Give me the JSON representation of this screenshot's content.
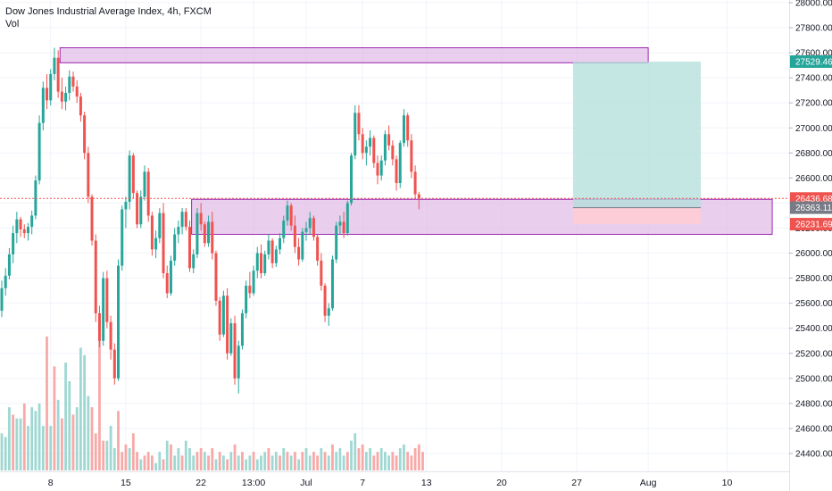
{
  "header": {
    "title": "Dow Jones Industrial Average Index, 4h, FXCM",
    "volume_label": "Vol"
  },
  "chart_data": {
    "type": "candlestick",
    "title": "Dow Jones Industrial Average Index, 4h, FXCM",
    "y_axis": {
      "range": [
        24200,
        28000
      ],
      "ticks": [
        24400,
        24600,
        24800,
        25000,
        25200,
        25400,
        25600,
        25800,
        26000,
        26200,
        26400,
        26600,
        26800,
        27000,
        27200,
        27400,
        27600,
        27800,
        28000
      ],
      "tick_labels": [
        "24400.00",
        "24600.00",
        "24800.00",
        "25000.00",
        "25200.00",
        "25400.00",
        "25600.00",
        "25800.00",
        "26000.00",
        "26200.00",
        "26400.00",
        "26600.00",
        "26800.00",
        "27000.00",
        "27200.00",
        "27400.00",
        "27600.00",
        "27800.00",
        "28000.00"
      ]
    },
    "x_axis": {
      "ticks": [
        {
          "label": "8",
          "x_index": 13
        },
        {
          "label": "15",
          "x_index": 33
        },
        {
          "label": "22",
          "x_index": 53
        },
        {
          "label": "13:00",
          "x_index": 67
        },
        {
          "label": "Jul",
          "x_index": 81
        },
        {
          "label": "7",
          "x_index": 96
        },
        {
          "label": "13",
          "x_index": 113
        },
        {
          "label": "20",
          "x_index": 133
        },
        {
          "label": "27",
          "x_index": 153
        },
        {
          "label": "Aug",
          "x_index": 172
        },
        {
          "label": "10",
          "x_index": 193
        }
      ]
    },
    "price_labels": [
      {
        "value": "27529.46",
        "price": 27529.46,
        "color": "#26a69a"
      },
      {
        "value": "26436.68",
        "price": 26436.68,
        "color": "#ef5350"
      },
      {
        "value": "26363.11",
        "price": 26363.11,
        "color": "#787b86"
      },
      {
        "value": "26231.69",
        "price": 26231.69,
        "color": "#ef5350"
      }
    ],
    "zones": [
      {
        "name": "resistance-zone",
        "price_top": 27640,
        "price_bottom": 27520,
        "x_start": 15.5,
        "x_end": 172,
        "color": "#e1bee7",
        "border": "#9c27b0"
      },
      {
        "name": "support-zone",
        "price_top": 26430,
        "price_bottom": 26150,
        "x_start": 50.5,
        "x_end": 205,
        "color": "#e1bee7",
        "border": "#9c27b0"
      }
    ],
    "position": {
      "entry": 26363.11,
      "target": 27529.46,
      "stop": 26231.69,
      "x_start": 152,
      "x_end": 186,
      "profit_color": "#b2dfdb",
      "loss_color": "#ffcdd2"
    },
    "current_price": 26436.68,
    "colors": {
      "up": "#26a69a",
      "down": "#ef5350",
      "up_vol": "#9fd8d2",
      "down_vol": "#f7a9a7"
    },
    "candles": [
      [
        25540,
        25780,
        25490,
        25720
      ],
      [
        25720,
        25880,
        25660,
        25820
      ],
      [
        25820,
        26040,
        25790,
        25990
      ],
      [
        25990,
        26220,
        25920,
        26160
      ],
      [
        26160,
        26330,
        26080,
        26270
      ],
      [
        26270,
        26290,
        26130,
        26190
      ],
      [
        26190,
        26230,
        26120,
        26160
      ],
      [
        26160,
        26240,
        26100,
        26210
      ],
      [
        26210,
        26340,
        26150,
        26300
      ],
      [
        26300,
        26620,
        26270,
        26580
      ],
      [
        26580,
        27100,
        26550,
        27040
      ],
      [
        27040,
        27370,
        26980,
        27320
      ],
      [
        27320,
        27430,
        27150,
        27220
      ],
      [
        27220,
        27470,
        27180,
        27430
      ],
      [
        27430,
        27640,
        27380,
        27560
      ],
      [
        27560,
        27620,
        27240,
        27290
      ],
      [
        27290,
        27400,
        27150,
        27210
      ],
      [
        27210,
        27330,
        27140,
        27280
      ],
      [
        27280,
        27460,
        27220,
        27410
      ],
      [
        27410,
        27450,
        27290,
        27330
      ],
      [
        27330,
        27380,
        27200,
        27250
      ],
      [
        27250,
        27280,
        27050,
        27100
      ],
      [
        27100,
        27130,
        26750,
        26800
      ],
      [
        26800,
        26850,
        26400,
        26450
      ],
      [
        26450,
        26470,
        26060,
        26100
      ],
      [
        26100,
        26150,
        25450,
        25520
      ],
      [
        25520,
        25580,
        25250,
        25300
      ],
      [
        25300,
        25850,
        25260,
        25800
      ],
      [
        25800,
        25860,
        25400,
        25450
      ],
      [
        25450,
        25500,
        25150,
        25230
      ],
      [
        25230,
        25280,
        24950,
        25000
      ],
      [
        25000,
        25950,
        24980,
        25900
      ],
      [
        25900,
        26380,
        25860,
        26350
      ],
      [
        26350,
        26450,
        26200,
        26410
      ],
      [
        26410,
        26820,
        26350,
        26780
      ],
      [
        26780,
        26800,
        26440,
        26480
      ],
      [
        26480,
        26500,
        26200,
        26230
      ],
      [
        26230,
        26500,
        26200,
        26450
      ],
      [
        26450,
        26700,
        26420,
        26650
      ],
      [
        26650,
        26680,
        26250,
        26300
      ],
      [
        26300,
        26330,
        25980,
        26030
      ],
      [
        26030,
        26180,
        25960,
        26120
      ],
      [
        26120,
        26360,
        26080,
        26320
      ],
      [
        26320,
        26400,
        25800,
        25840
      ],
      [
        25840,
        25900,
        25640,
        25680
      ],
      [
        25680,
        25980,
        25660,
        25940
      ],
      [
        25940,
        26200,
        25900,
        26150
      ],
      [
        26150,
        26260,
        26080,
        26210
      ],
      [
        26210,
        26360,
        26150,
        26330
      ],
      [
        26330,
        26360,
        26180,
        26210
      ],
      [
        26210,
        26260,
        25850,
        25880
      ],
      [
        25880,
        26030,
        25840,
        25990
      ],
      [
        25990,
        26360,
        25960,
        26320
      ],
      [
        26320,
        26400,
        26180,
        26230
      ],
      [
        26230,
        26250,
        26050,
        26080
      ],
      [
        26080,
        26300,
        26050,
        26250
      ],
      [
        26250,
        26330,
        25950,
        26000
      ],
      [
        26000,
        26020,
        25580,
        25620
      ],
      [
        25620,
        25650,
        25300,
        25350
      ],
      [
        25350,
        25700,
        25330,
        25660
      ],
      [
        25660,
        25720,
        25150,
        25200
      ],
      [
        25200,
        25480,
        25180,
        25440
      ],
      [
        25440,
        25500,
        24950,
        25000
      ],
      [
        25000,
        25300,
        24880,
        25260
      ],
      [
        25260,
        25550,
        25230,
        25520
      ],
      [
        25520,
        25780,
        25480,
        25740
      ],
      [
        25740,
        25850,
        25640,
        25680
      ],
      [
        25680,
        25900,
        25660,
        25860
      ],
      [
        25860,
        26050,
        25800,
        26000
      ],
      [
        26000,
        26070,
        25800,
        25840
      ],
      [
        25840,
        26020,
        25820,
        25990
      ],
      [
        25990,
        26150,
        25950,
        26100
      ],
      [
        26100,
        26120,
        25880,
        25920
      ],
      [
        25920,
        26060,
        25890,
        26030
      ],
      [
        26030,
        26160,
        25990,
        26120
      ],
      [
        26120,
        26300,
        26080,
        26260
      ],
      [
        26260,
        26420,
        26220,
        26380
      ],
      [
        26380,
        26400,
        26180,
        26220
      ],
      [
        26220,
        26300,
        26000,
        26050
      ],
      [
        26050,
        26120,
        25900,
        25950
      ],
      [
        25950,
        26200,
        25930,
        26170
      ],
      [
        26170,
        26250,
        26100,
        26200
      ],
      [
        26200,
        26330,
        26150,
        26280
      ],
      [
        26280,
        26300,
        26100,
        26130
      ],
      [
        26130,
        26150,
        25900,
        25940
      ],
      [
        25940,
        26000,
        25700,
        25740
      ],
      [
        25740,
        25760,
        25450,
        25500
      ],
      [
        25500,
        25600,
        25420,
        25560
      ],
      [
        25560,
        25980,
        25540,
        25950
      ],
      [
        25950,
        26250,
        25920,
        26220
      ],
      [
        26220,
        26300,
        26150,
        26250
      ],
      [
        26250,
        26330,
        26120,
        26160
      ],
      [
        26160,
        26420,
        26140,
        26400
      ],
      [
        26400,
        26800,
        26380,
        26780
      ],
      [
        26780,
        27180,
        26750,
        27120
      ],
      [
        27120,
        27180,
        26900,
        26950
      ],
      [
        26950,
        27000,
        26750,
        26800
      ],
      [
        26800,
        26900,
        26700,
        26850
      ],
      [
        26850,
        26980,
        26780,
        26920
      ],
      [
        26920,
        26940,
        26680,
        26720
      ],
      [
        26720,
        26780,
        26550,
        26620
      ],
      [
        26620,
        26780,
        26580,
        26740
      ],
      [
        26740,
        26980,
        26700,
        26950
      ],
      [
        26950,
        27020,
        26820,
        26860
      ],
      [
        26860,
        26900,
        26700,
        26750
      ],
      [
        26750,
        26780,
        26500,
        26560
      ],
      [
        26560,
        26900,
        26520,
        26880
      ],
      [
        26880,
        27150,
        26850,
        27100
      ],
      [
        27100,
        27120,
        26850,
        26900
      ],
      [
        26900,
        26950,
        26600,
        26650
      ],
      [
        26650,
        26700,
        26430,
        26470
      ],
      [
        26470,
        26490,
        26350,
        26436.68
      ]
    ],
    "volumes": [
      [
        0.1,
        1
      ],
      [
        0.09,
        1
      ],
      [
        0.17,
        1
      ],
      [
        0.15,
        0
      ],
      [
        0.14,
        1
      ],
      [
        0.14,
        1
      ],
      [
        0.18,
        0
      ],
      [
        0.12,
        1
      ],
      [
        0.17,
        1
      ],
      [
        0.16,
        1
      ],
      [
        0.18,
        1
      ],
      [
        0.12,
        1
      ],
      [
        0.36,
        0
      ],
      [
        0.12,
        1
      ],
      [
        0.28,
        0
      ],
      [
        0.19,
        1
      ],
      [
        0.14,
        0
      ],
      [
        0.29,
        1
      ],
      [
        0.24,
        1
      ],
      [
        0.15,
        0
      ],
      [
        0.17,
        1
      ],
      [
        0.33,
        1
      ],
      [
        0.31,
        1
      ],
      [
        0.2,
        1
      ],
      [
        0.17,
        0
      ],
      [
        0.1,
        0
      ],
      [
        0.35,
        0
      ],
      [
        0.08,
        0
      ],
      [
        0.08,
        1
      ],
      [
        0.12,
        1
      ],
      [
        0.06,
        1
      ],
      [
        0.16,
        0
      ],
      [
        0.05,
        0
      ],
      [
        0.07,
        0
      ],
      [
        0.06,
        1
      ],
      [
        0.1,
        0
      ],
      [
        0.05,
        0
      ],
      [
        0.03,
        1
      ],
      [
        0.04,
        0
      ],
      [
        0.05,
        0
      ],
      [
        0.04,
        0
      ],
      [
        0.02,
        1
      ],
      [
        0.05,
        1
      ],
      [
        0.03,
        0
      ],
      [
        0.08,
        1
      ],
      [
        0.07,
        0
      ],
      [
        0.04,
        1
      ],
      [
        0.06,
        1
      ],
      [
        0.04,
        0
      ],
      [
        0.08,
        1
      ],
      [
        0.06,
        1
      ],
      [
        0.04,
        1
      ],
      [
        0.05,
        0
      ],
      [
        0.06,
        0
      ],
      [
        0.05,
        1
      ],
      [
        0.04,
        0
      ],
      [
        0.06,
        0
      ],
      [
        0.03,
        1
      ],
      [
        0.05,
        0
      ],
      [
        0.04,
        1
      ],
      [
        0.03,
        0
      ],
      [
        0.05,
        1
      ],
      [
        0.07,
        0
      ],
      [
        0.04,
        1
      ],
      [
        0.05,
        0
      ],
      [
        0.03,
        1
      ],
      [
        0.04,
        1
      ],
      [
        0.05,
        0
      ],
      [
        0.03,
        1
      ],
      [
        0.04,
        1
      ],
      [
        0.05,
        1
      ],
      [
        0.06,
        0
      ],
      [
        0.04,
        1
      ],
      [
        0.05,
        1
      ],
      [
        0.04,
        0
      ],
      [
        0.06,
        1
      ],
      [
        0.05,
        0
      ],
      [
        0.04,
        1
      ],
      [
        0.05,
        0
      ],
      [
        0.03,
        1
      ],
      [
        0.05,
        0
      ],
      [
        0.06,
        1
      ],
      [
        0.04,
        1
      ],
      [
        0.05,
        0
      ],
      [
        0.04,
        0
      ],
      [
        0.06,
        1
      ],
      [
        0.05,
        0
      ],
      [
        0.04,
        1
      ],
      [
        0.07,
        0
      ],
      [
        0.05,
        1
      ],
      [
        0.06,
        1
      ],
      [
        0.04,
        1
      ],
      [
        0.05,
        0
      ],
      [
        0.08,
        1
      ],
      [
        0.1,
        1
      ],
      [
        0.06,
        0
      ],
      [
        0.07,
        0
      ],
      [
        0.05,
        1
      ],
      [
        0.06,
        1
      ],
      [
        0.04,
        0
      ],
      [
        0.05,
        0
      ],
      [
        0.06,
        1
      ],
      [
        0.05,
        1
      ],
      [
        0.04,
        1
      ],
      [
        0.05,
        0
      ],
      [
        0.04,
        0
      ],
      [
        0.06,
        1
      ],
      [
        0.07,
        1
      ],
      [
        0.05,
        0
      ],
      [
        0.04,
        0
      ],
      [
        0.06,
        0
      ],
      [
        0.07,
        0
      ],
      [
        0.05,
        0
      ]
    ]
  }
}
